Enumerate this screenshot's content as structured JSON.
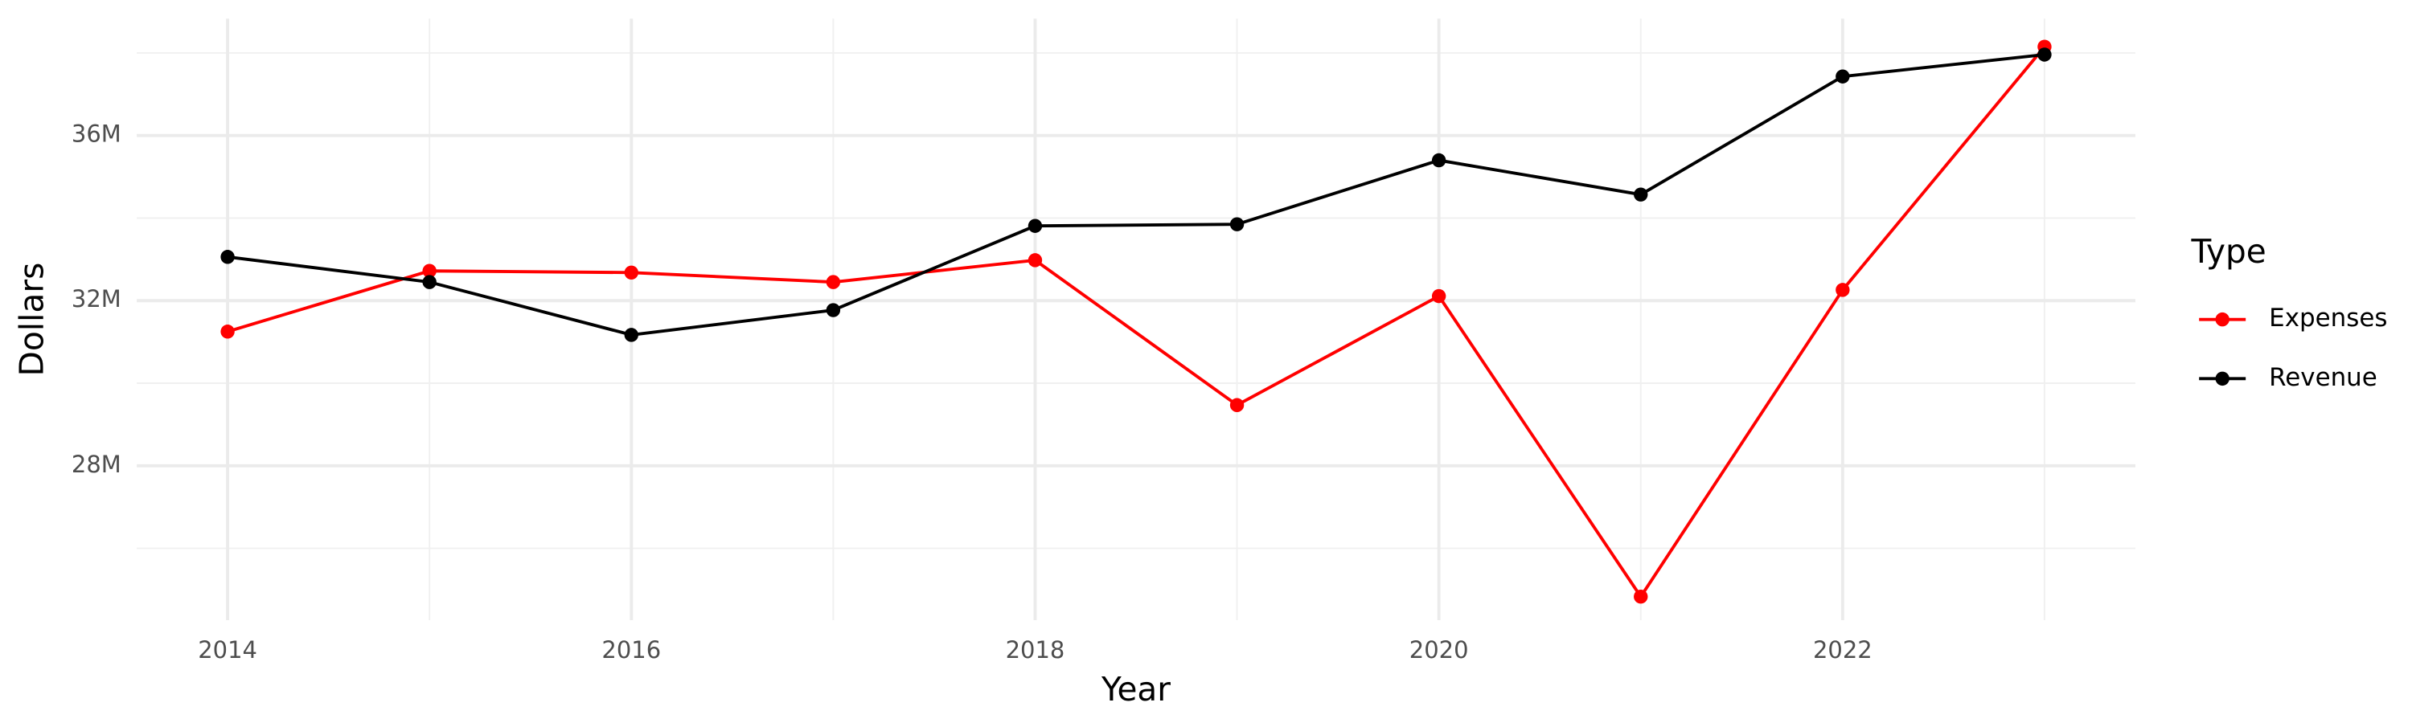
{
  "chart_data": {
    "type": "line",
    "x_label": "Year",
    "y_label": "Dollars",
    "legend_title": "Type",
    "x": [
      2014,
      2015,
      2016,
      2017,
      2018,
      2019,
      2020,
      2021,
      2022,
      2023
    ],
    "series": [
      {
        "name": "Expenses",
        "color": "#ff0000",
        "values": [
          31250000,
          32720000,
          32680000,
          32450000,
          32980000,
          29470000,
          32110000,
          24830000,
          32260000,
          38150000
        ]
      },
      {
        "name": "Revenue",
        "color": "#000000",
        "values": [
          33060000,
          32450000,
          31170000,
          31770000,
          33810000,
          33850000,
          35400000,
          34570000,
          37430000,
          37960000
        ]
      }
    ],
    "xlim": [
      2013.55,
      2023.45
    ],
    "xticks": [
      2014,
      2016,
      2018,
      2020,
      2022
    ],
    "ylim": [
      24260000,
      38830000
    ],
    "yticks": [
      {
        "value": 28000000,
        "label": "28M"
      },
      {
        "value": 32000000,
        "label": "32M"
      },
      {
        "value": 36000000,
        "label": "36M"
      }
    ],
    "grid": true,
    "legend": "right"
  }
}
